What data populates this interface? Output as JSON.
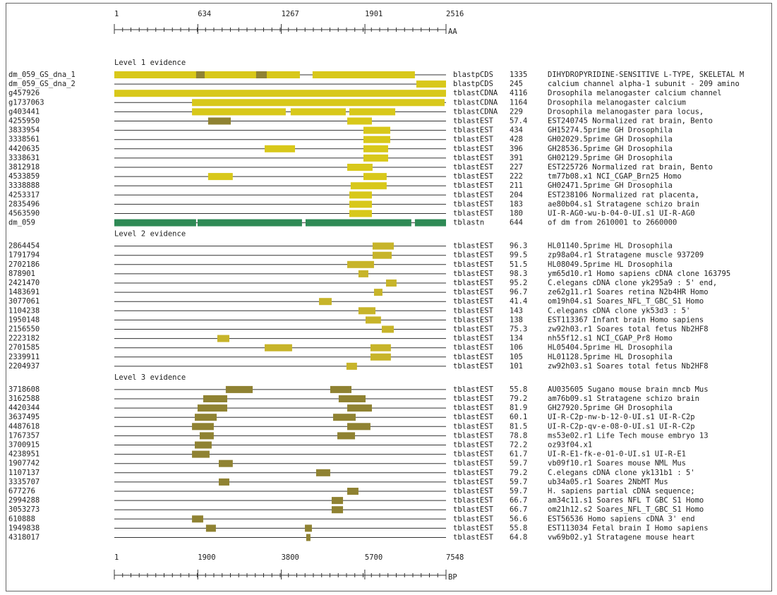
{
  "top_axis": {
    "lim": [
      1,
      2516
    ],
    "ticks": [
      1,
      634,
      1267,
      1901,
      2516
    ],
    "unit": "AA"
  },
  "bottom_axis": {
    "lim": [
      1,
      7548
    ],
    "ticks": [
      1,
      1900,
      3800,
      5700,
      7548
    ],
    "unit": "BP"
  },
  "levels": [
    {
      "title": "Level 1 evidence",
      "color": "#d8c81a",
      "rows": [
        {
          "id": "dm_059_GS_dna_1",
          "program": "blastpCDS",
          "score": 1335,
          "description": "DIHYDROPYRIDINE-SENSITIVE L-TYPE, SKELETAL M",
          "hits": [
            {
              "start": 1,
              "end": 1408
            },
            {
              "start": 1504,
              "end": 2280
            },
            {
              "start": 621,
              "end": 686,
              "color": "#8f8232"
            },
            {
              "start": 1076,
              "end": 1157,
              "color": "#8f8232"
            }
          ]
        },
        {
          "id": "dm_059_GS_dna_2",
          "program": "blastpCDS",
          "score": 245,
          "description": "calcium channel alpha-1 subunit - 209 amino",
          "hits": [
            {
              "start": 2291,
              "end": 2516
            }
          ]
        },
        {
          "id": "g457926",
          "program": "tblastCDNA",
          "score": 4116,
          "description": "Drosophila melanogaster calcium channel",
          "hits": [
            {
              "start": 1,
              "end": 2516
            }
          ]
        },
        {
          "id": "g1737063",
          "program": "tblastCDNA",
          "score": 1164,
          "description": "Drosophila melanogaster calcium",
          "hits": [
            {
              "start": 590,
              "end": 2505
            }
          ]
        },
        {
          "id": "g403441",
          "program": "tblastCDNA",
          "score": 229,
          "description": "Drosophila melanogaster para locus,",
          "hits": [
            {
              "start": 590,
              "end": 1301
            },
            {
              "start": 1338,
              "end": 1756
            },
            {
              "start": 1783,
              "end": 2131
            }
          ]
        },
        {
          "id": "4255950",
          "program": "tblastEST",
          "score": 57.4,
          "description": "EST240745 Normalized rat brain, Bento",
          "hits": [
            {
              "start": 712,
              "end": 884,
              "color": "#8f8232"
            },
            {
              "start": 1767,
              "end": 1954
            }
          ]
        },
        {
          "id": "3833954",
          "program": "tblastEST",
          "score": 434,
          "description": "GH15274.5prime GH Drosophila",
          "hits": [
            {
              "start": 1890,
              "end": 2093
            }
          ]
        },
        {
          "id": "3338561",
          "program": "tblastEST",
          "score": 428,
          "description": "GH02029.5prime GH Drosophila",
          "hits": [
            {
              "start": 1890,
              "end": 2093
            }
          ]
        },
        {
          "id": "4420635",
          "program": "tblastEST",
          "score": 396,
          "description": "GH28536.5prime GH Drosophila",
          "hits": [
            {
              "start": 1141,
              "end": 1371
            },
            {
              "start": 1890,
              "end": 2077
            }
          ]
        },
        {
          "id": "3338631",
          "program": "tblastEST",
          "score": 391,
          "description": "GH02129.5prime GH Drosophila",
          "hits": [
            {
              "start": 1890,
              "end": 2077
            }
          ]
        },
        {
          "id": "3812918",
          "program": "tblastEST",
          "score": 227,
          "description": "EST225726 Normalized rat brain, Bento",
          "hits": [
            {
              "start": 1767,
              "end": 1959
            }
          ]
        },
        {
          "id": "4533859",
          "program": "tblastEST",
          "score": 222,
          "description": "tm77b08.x1 NCI_CGAP_Brn25 Homo",
          "hits": [
            {
              "start": 712,
              "end": 899
            },
            {
              "start": 1890,
              "end": 2066
            }
          ]
        },
        {
          "id": "3338888",
          "program": "tblastEST",
          "score": 211,
          "description": "GH02471.5prime GH Drosophila",
          "hits": [
            {
              "start": 1793,
              "end": 1954
            },
            {
              "start": 1954,
              "end": 2066
            }
          ]
        },
        {
          "id": "4253317",
          "program": "tblastEST",
          "score": 204,
          "description": "EST238106 Normalized rat placenta,",
          "hits": [
            {
              "start": 1783,
              "end": 1954
            }
          ]
        },
        {
          "id": "2835496",
          "program": "tblastEST",
          "score": 183,
          "description": "ae80b04.s1 Stratagene schizo brain",
          "hits": [
            {
              "start": 1783,
              "end": 1954
            }
          ]
        },
        {
          "id": "4563590",
          "program": "tblastEST",
          "score": 180,
          "description": "UI-R-AG0-wu-b-04-0-UI.s1 UI-R-AG0",
          "hits": [
            {
              "start": 1783,
              "end": 1954
            }
          ]
        },
        {
          "id": "dm_059",
          "program": "tblastn",
          "score": 644,
          "description": "of dm from 2610001 to 2660000",
          "hits": [
            {
              "start": 1,
              "end": 621,
              "color": "#2e8a55"
            },
            {
              "start": 632,
              "end": 1424,
              "color": "#2e8a55"
            },
            {
              "start": 1451,
              "end": 2253,
              "color": "#2e8a55"
            },
            {
              "start": 2280,
              "end": 2516,
              "color": "#2e8a55"
            }
          ]
        }
      ]
    },
    {
      "title": "Level 2 evidence",
      "color": "#c7b42a",
      "rows": [
        {
          "id": "2864454",
          "program": "tblastEST",
          "score": 96.3,
          "description": "HL01140.5prime HL Drosophila",
          "hits": [
            {
              "start": 1959,
              "end": 2120
            }
          ]
        },
        {
          "id": "1791794",
          "program": "tblastEST",
          "score": 99.5,
          "description": "zp98a04.r1 Stratagene muscle 937209",
          "hits": [
            {
              "start": 1959,
              "end": 2104
            }
          ]
        },
        {
          "id": "2702186",
          "program": "tblastEST",
          "score": 51.5,
          "description": "HL08049.5prime HL Drosophila",
          "hits": [
            {
              "start": 1767,
              "end": 1970
            }
          ]
        },
        {
          "id": "878901",
          "program": "tblastEST",
          "score": 98.3,
          "description": "ym65d10.r1 Homo sapiens cDNA clone 163795",
          "hits": [
            {
              "start": 1852,
              "end": 1927
            }
          ]
        },
        {
          "id": "2421470",
          "program": "tblastEST",
          "score": 95.2,
          "description": "C.elegans cDNA clone yk295a9 : 5' end,",
          "hits": [
            {
              "start": 2061,
              "end": 2141
            }
          ]
        },
        {
          "id": "1483691",
          "program": "tblastEST",
          "score": 96.7,
          "description": "ze62g11.r1 Soares retina N2b4HR Homo",
          "hits": [
            {
              "start": 1970,
              "end": 2034
            }
          ]
        },
        {
          "id": "3077061",
          "program": "tblastEST",
          "score": 41.4,
          "description": "om19h04.s1 Soares_NFL_T_GBC_S1 Homo",
          "hits": [
            {
              "start": 1553,
              "end": 1649
            }
          ]
        },
        {
          "id": "1104238",
          "program": "tblastEST",
          "score": 143,
          "description": "C.elegans cDNA clone yk53d3 : 5'",
          "hits": [
            {
              "start": 1852,
              "end": 1981
            }
          ]
        },
        {
          "id": "1950148",
          "program": "tblastEST",
          "score": 138,
          "description": "EST113367 Infant brain Homo sapiens",
          "hits": [
            {
              "start": 1906,
              "end": 2023
            }
          ]
        },
        {
          "id": "2156550",
          "program": "tblastEST",
          "score": 75.3,
          "description": "zw92h03.r1 Soares total fetus Nb2HF8",
          "hits": [
            {
              "start": 2029,
              "end": 2120
            }
          ]
        },
        {
          "id": "2223182",
          "program": "tblastEST",
          "score": 134,
          "description": "nh55f12.s1 NCI_CGAP_Pr8 Homo",
          "hits": [
            {
              "start": 782,
              "end": 873
            }
          ]
        },
        {
          "id": "2701585",
          "program": "tblastEST",
          "score": 106,
          "description": "HL05404.5prime HL Drosophila",
          "hits": [
            {
              "start": 1141,
              "end": 1349
            },
            {
              "start": 1943,
              "end": 2098
            }
          ]
        },
        {
          "id": "2339911",
          "program": "tblastEST",
          "score": 105,
          "description": "HL01128.5prime HL Drosophila",
          "hits": [
            {
              "start": 1943,
              "end": 2098
            }
          ]
        },
        {
          "id": "2204937",
          "program": "tblastEST",
          "score": 101,
          "description": "zw92h03.s1 Soares total fetus Nb2HF8",
          "hits": [
            {
              "start": 1761,
              "end": 1841
            }
          ]
        }
      ]
    },
    {
      "title": "Level 3 evidence",
      "color": "#8f8232",
      "rows": [
        {
          "id": "3718608",
          "program": "tblastEST",
          "score": 55.8,
          "description": "AU035605 Sugano mouse brain mncb Mus",
          "hits": [
            {
              "start": 846,
              "end": 1050
            },
            {
              "start": 1638,
              "end": 1799
            }
          ]
        },
        {
          "id": "3162588",
          "program": "tblastEST",
          "score": 79.2,
          "description": "am76b09.s1 Stratagene schizo brain",
          "hits": [
            {
              "start": 675,
              "end": 857
            },
            {
              "start": 1702,
              "end": 1906
            }
          ]
        },
        {
          "id": "4420344",
          "program": "tblastEST",
          "score": 81.9,
          "description": "GH27920.5prime GH Drosophila",
          "hits": [
            {
              "start": 632,
              "end": 857
            },
            {
              "start": 1767,
              "end": 1954
            }
          ]
        },
        {
          "id": "3637495",
          "program": "tblastEST",
          "score": 60.1,
          "description": "UI-R-C2p-nw-b-12-0-UI.s1 UI-R-C2p",
          "hits": [
            {
              "start": 611,
              "end": 777
            },
            {
              "start": 1660,
              "end": 1831
            }
          ]
        },
        {
          "id": "4487618",
          "program": "tblastEST",
          "score": 81.5,
          "description": "UI-R-C2p-qv-e-08-0-UI.s1 UI-R-C2p",
          "hits": [
            {
              "start": 590,
              "end": 755
            },
            {
              "start": 1767,
              "end": 1943
            }
          ]
        },
        {
          "id": "1767357",
          "program": "tblastEST",
          "score": 78.8,
          "description": "ms53e02.r1 Life Tech mouse embryo 13",
          "hits": [
            {
              "start": 648,
              "end": 755
            },
            {
              "start": 1692,
              "end": 1826
            }
          ]
        },
        {
          "id": "3700915",
          "program": "tblastEST",
          "score": 72.2,
          "description": "oz93f04.x1",
          "hits": [
            {
              "start": 611,
              "end": 739
            }
          ]
        },
        {
          "id": "4238951",
          "program": "tblastEST",
          "score": 61.7,
          "description": "UI-R-E1-fk-e-01-0-UI.s1 UI-R-E1",
          "hits": [
            {
              "start": 590,
              "end": 723
            }
          ]
        },
        {
          "id": "1907742",
          "program": "tblastEST",
          "score": 59.7,
          "description": "vb09f10.r1 Soares mouse NML Mus",
          "hits": [
            {
              "start": 793,
              "end": 899
            }
          ]
        },
        {
          "id": "1107137",
          "program": "tblastEST",
          "score": 79.2,
          "description": "C.elegans cDNA clone yk131b1 : 5'",
          "hits": [
            {
              "start": 1531,
              "end": 1638
            }
          ]
        },
        {
          "id": "3335707",
          "program": "tblastEST",
          "score": 59.7,
          "description": "ub34a05.r1 Soares 2NbMT Mus",
          "hits": [
            {
              "start": 793,
              "end": 873
            }
          ]
        },
        {
          "id": "677276",
          "program": "tblastEST",
          "score": 59.7,
          "description": "H. sapiens partial cDNA sequence;",
          "hits": [
            {
              "start": 1767,
              "end": 1852
            }
          ]
        },
        {
          "id": "2994288",
          "program": "tblastEST",
          "score": 66.7,
          "description": "am34c11.s1 Soares NFL T GBC S1 Homo",
          "hits": [
            {
              "start": 1649,
              "end": 1735
            }
          ]
        },
        {
          "id": "3053273",
          "program": "tblastEST",
          "score": 66.7,
          "description": "om21h12.s2 Soares_NFL_T_GBC_S1 Homo",
          "hits": [
            {
              "start": 1649,
              "end": 1735
            }
          ]
        },
        {
          "id": "610888",
          "program": "tblastEST",
          "score": 56.6,
          "description": "EST56536 Homo sapiens cDNA 3' end",
          "hits": [
            {
              "start": 590,
              "end": 675
            }
          ]
        },
        {
          "id": "1949838",
          "program": "tblastEST",
          "score": 55.8,
          "description": "EST113034 Fetal brain I Homo sapiens",
          "hits": [
            {
              "start": 696,
              "end": 771
            },
            {
              "start": 1446,
              "end": 1499
            }
          ]
        },
        {
          "id": "4318017",
          "program": "tblastEST",
          "score": 64.8,
          "description": "vw69b02.y1 Stratagene mouse heart",
          "hits": [
            {
              "start": 1456,
              "end": 1488
            }
          ]
        }
      ]
    }
  ]
}
